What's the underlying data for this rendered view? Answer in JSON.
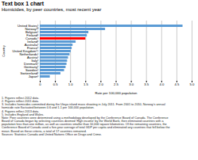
{
  "chart_data": {
    "type": "bar",
    "orientation": "horizontal",
    "title": "Text box 1 chart",
    "subtitle": "Homicides, by peer countries, most recent year",
    "xlabel": "Rate per 100,000 population",
    "ylabel": "Country",
    "categories": [
      "United States¹",
      "Norway²³",
      "Belgium¹",
      "Finland¹",
      "Canada⁴",
      "Ireland¹",
      "Australia¹",
      "France¹",
      "United Kingdom¹⁵",
      "Netherlands¹",
      "Austria¹",
      "Italy¹",
      "Denmark¹",
      "Germany¹",
      "Sweden¹",
      "Switzerland¹",
      "Japan¹"
    ],
    "values": [
      4.7,
      2.15,
      1.6,
      1.55,
      1.5,
      1.18,
      1.08,
      1.05,
      1.02,
      0.98,
      0.93,
      0.9,
      0.88,
      0.85,
      0.8,
      0.68,
      0.33
    ],
    "colors": [
      "#5B9BD5",
      "#5B9BD5",
      "#5B9BD5",
      "#5B9BD5",
      "#FF0000",
      "#5B9BD5",
      "#5B9BD5",
      "#5B9BD5",
      "#5B9BD5",
      "#5B9BD5",
      "#5B9BD5",
      "#5B9BD5",
      "#5B9BD5",
      "#5B9BD5",
      "#5B9BD5",
      "#5B9BD5",
      "#5B9BD5"
    ],
    "xlim": [
      0,
      5.0
    ],
    "xticks": [
      0,
      0.5,
      {
        "value": 1.0,
        "label": "1.0"
      },
      1.5,
      {
        "value": 2.0,
        "label": "2.0"
      },
      2.5,
      {
        "value": 3.0,
        "label": "3.0"
      },
      3.5,
      {
        "value": 4.0,
        "label": "4.0"
      },
      4.5,
      {
        "value": 5.0,
        "label": "5.0"
      }
    ],
    "grid": true,
    "footnotes": "1. Figures reflect 2012 data.\n2. Figures reflect 2011 data.\n3. Includes homicides committed during the Utoya island mass shooting in July 2011. From 2001 to 2010, Norway's annual\nhomicide rate fluctuated between 0.6 and 1.1 per 100,000 population.\n4. Figures reflect 2013 data.\n5. Includes England and Wales.\nNote: Peer countries were determined using a methodology developed by the Conference Board of Canada. The Conference\nBoard of Canada began by selecting countries deemed 'High income' by the World Bank, then eliminated countries with a\npopulation less than one million, as well as countries smaller than 10,000 square kilometres. Of the remaining countries, the\nConference Board of Canada used a five-year average of total GDP per capita and eliminated any countries that fell below the\nmean. Based on these criteria, a total of 17 countries remained.\nSources: Statistics Canada and United Nations Office on Drugs and Crime."
  }
}
